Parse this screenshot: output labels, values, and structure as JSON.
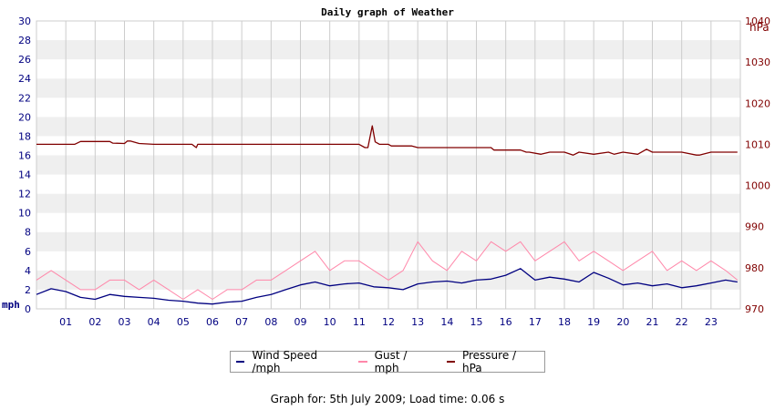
{
  "chart_data": {
    "type": "line",
    "title": "Daily graph of Weather",
    "left_axis": {
      "label": "mph",
      "min": 0,
      "max": 30,
      "step": 2
    },
    "right_axis": {
      "label": "hPa",
      "min": 970,
      "max": 1040,
      "step": 10,
      "ticks": [
        970,
        980,
        990,
        1000,
        1010,
        1020,
        1030,
        1040
      ]
    },
    "x_ticks": [
      "01",
      "02",
      "03",
      "04",
      "05",
      "06",
      "07",
      "08",
      "09",
      "10",
      "11",
      "12",
      "13",
      "14",
      "15",
      "16",
      "17",
      "18",
      "19",
      "20",
      "21",
      "22",
      "23"
    ],
    "grid": true,
    "legend_position": "bottom",
    "series": [
      {
        "name": "Wind Speed /mph",
        "axis": "left",
        "color": "#000080",
        "x": [
          0,
          0.5,
          1,
          1.5,
          2,
          2.5,
          3,
          3.5,
          4,
          4.5,
          5,
          5.5,
          6,
          6.5,
          7,
          7.5,
          8,
          8.5,
          9,
          9.5,
          10,
          10.5,
          11,
          11.5,
          12,
          12.5,
          13,
          13.5,
          14,
          14.5,
          15,
          15.5,
          16,
          16.5,
          17,
          17.5,
          18,
          18.5,
          19,
          19.5,
          20,
          20.5,
          21,
          21.5,
          22,
          22.5,
          23,
          23.5,
          23.9
        ],
        "y": [
          1.5,
          2.1,
          1.8,
          1.2,
          1.0,
          1.5,
          1.3,
          1.2,
          1.1,
          0.9,
          0.8,
          0.6,
          0.5,
          0.7,
          0.8,
          1.2,
          1.5,
          2.0,
          2.5,
          2.8,
          2.4,
          2.6,
          2.7,
          2.3,
          2.2,
          2.0,
          2.6,
          2.8,
          2.9,
          2.7,
          3.0,
          3.1,
          3.5,
          4.2,
          3.0,
          3.3,
          3.1,
          2.8,
          3.8,
          3.2,
          2.5,
          2.7,
          2.4,
          2.6,
          2.2,
          2.4,
          2.7,
          3.0,
          2.8
        ]
      },
      {
        "name": "Gust / mph",
        "axis": "left",
        "color": "#ff88aa",
        "x": [
          0,
          0.5,
          1,
          1.5,
          2,
          2.5,
          3,
          3.5,
          4,
          4.5,
          5,
          5.5,
          6,
          6.5,
          7,
          7.5,
          8,
          8.5,
          9,
          9.5,
          10,
          10.5,
          11,
          11.5,
          12,
          12.5,
          13,
          13.5,
          14,
          14.5,
          15,
          15.5,
          16,
          16.5,
          17,
          17.5,
          18,
          18.5,
          19,
          19.5,
          20,
          20.5,
          21,
          21.5,
          22,
          22.5,
          23,
          23.5,
          23.9
        ],
        "y": [
          3,
          4,
          3,
          2,
          2,
          3,
          3,
          2,
          3,
          2,
          1,
          2,
          1,
          2,
          2,
          3,
          3,
          4,
          5,
          6,
          4,
          5,
          5,
          4,
          3,
          4,
          7,
          5,
          4,
          6,
          5,
          7,
          6,
          7,
          5,
          6,
          7,
          5,
          6,
          5,
          4,
          5,
          6,
          4,
          5,
          4,
          5,
          4,
          3
        ]
      },
      {
        "name": "Pressure / hPa",
        "axis": "right",
        "color": "#800000",
        "x": [
          0,
          1.3,
          1.5,
          2.5,
          2.6,
          3.0,
          3.1,
          3.2,
          3.5,
          4.0,
          5.0,
          5.3,
          5.45,
          5.5,
          6.0,
          7.0,
          8.0,
          9.0,
          10.0,
          11.0,
          11.2,
          11.3,
          11.45,
          11.55,
          11.7,
          12.0,
          12.1,
          12.5,
          12.8,
          13.0,
          14.0,
          15.0,
          15.5,
          15.6,
          16.0,
          16.5,
          16.7,
          16.8,
          17.2,
          17.5,
          18.0,
          18.3,
          18.5,
          19.0,
          19.5,
          19.7,
          20.0,
          20.5,
          20.8,
          21.0,
          21.1,
          21.3,
          22.0,
          22.5,
          22.6,
          23.0,
          23.9
        ],
        "y": [
          1010,
          1010,
          1010.7,
          1010.7,
          1010.3,
          1010.2,
          1010.8,
          1010.8,
          1010.2,
          1010,
          1010,
          1010,
          1009.2,
          1010,
          1010,
          1010,
          1010,
          1010,
          1010,
          1010,
          1009.2,
          1009.2,
          1014.5,
          1010.6,
          1010,
          1010,
          1009.6,
          1009.6,
          1009.6,
          1009.2,
          1009.2,
          1009.2,
          1009.2,
          1008.6,
          1008.6,
          1008.6,
          1008.1,
          1008.1,
          1007.6,
          1008.1,
          1008.1,
          1007.4,
          1008.1,
          1007.6,
          1008.1,
          1007.6,
          1008.1,
          1007.6,
          1008.8,
          1008.1,
          1008.1,
          1008.1,
          1008.1,
          1007.4,
          1007.4,
          1008.1,
          1008.1
        ]
      }
    ]
  },
  "footer_text": "Graph for: 5th July 2009; Load time: 0.06 s"
}
